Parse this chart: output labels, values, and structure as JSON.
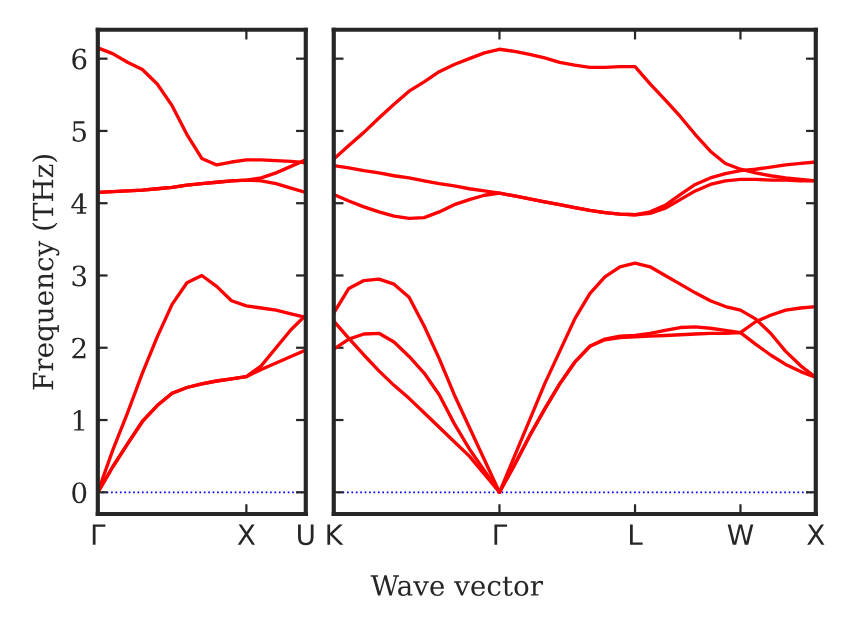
{
  "chart_data": [
    {
      "type": "line",
      "ylabel": "Frequency (THz)",
      "ylim": [
        -0.3,
        6.4
      ],
      "yticks": [
        0,
        1,
        2,
        3,
        4,
        5,
        6
      ],
      "categories": [
        "Γ",
        null,
        null,
        null,
        null,
        null,
        null,
        null,
        null,
        null,
        "X",
        null,
        null,
        null,
        "U"
      ],
      "line_style": "solid",
      "marker": "none",
      "grid": false,
      "legend": false,
      "ref_lines": [
        {
          "axis": "y",
          "value": 0,
          "label": null,
          "color": "#0000ff",
          "line_style": "dotted"
        }
      ],
      "series": [
        {
          "color": "#ff0000",
          "values": [
            6.15,
            6.07,
            5.95,
            5.85,
            5.65,
            5.35,
            4.95,
            4.62,
            4.53,
            4.57,
            4.6,
            4.6,
            4.59,
            4.58,
            4.56
          ]
        },
        {
          "color": "#ff0000",
          "values": [
            4.15,
            4.16,
            4.17,
            4.18,
            4.2,
            4.22,
            4.25,
            4.27,
            4.29,
            4.31,
            4.32,
            4.35,
            4.42,
            4.51,
            4.6
          ]
        },
        {
          "color": "#ff0000",
          "values": [
            4.15,
            4.16,
            4.17,
            4.18,
            4.2,
            4.22,
            4.25,
            4.27,
            4.29,
            4.31,
            4.32,
            4.31,
            4.27,
            4.21,
            4.15
          ]
        },
        {
          "color": "#ff0000",
          "values": [
            0,
            0.58,
            1.1,
            1.65,
            2.15,
            2.6,
            2.9,
            3.0,
            2.85,
            2.65,
            2.58,
            2.55,
            2.52,
            2.47,
            2.42
          ]
        },
        {
          "color": "#ff0000",
          "values": [
            0,
            0.35,
            0.67,
            0.98,
            1.2,
            1.37,
            1.45,
            1.5,
            1.54,
            1.57,
            1.6,
            1.75,
            2.0,
            2.25,
            2.45
          ]
        },
        {
          "color": "#ff0000",
          "values": [
            0,
            0.35,
            0.67,
            0.98,
            1.2,
            1.37,
            1.45,
            1.5,
            1.54,
            1.57,
            1.6,
            1.7,
            1.79,
            1.88,
            1.97
          ]
        }
      ]
    },
    {
      "type": "line",
      "xlabel": "Wave vector",
      "ylim": [
        -0.3,
        6.4
      ],
      "yticks": [
        0,
        1,
        2,
        3,
        4,
        5,
        6
      ],
      "tick_labels": "x",
      "categories": [
        "K",
        null,
        null,
        null,
        null,
        null,
        null,
        null,
        null,
        null,
        null,
        "Γ",
        null,
        null,
        null,
        null,
        null,
        null,
        null,
        null,
        "L",
        null,
        null,
        null,
        null,
        null,
        null,
        "W",
        null,
        null,
        null,
        null,
        "X"
      ],
      "line_style": "solid",
      "marker": "none",
      "grid": false,
      "legend": false,
      "ref_lines": [
        {
          "axis": "y",
          "value": 0,
          "label": null,
          "color": "#0000ff",
          "line_style": "dotted"
        }
      ],
      "series": [
        {
          "color": "#ff0000",
          "values": [
            4.61,
            4.8,
            4.98,
            5.18,
            5.37,
            5.55,
            5.68,
            5.82,
            5.92,
            6.0,
            6.08,
            6.13,
            6.1,
            6.06,
            6.01,
            5.95,
            5.91,
            5.88,
            5.88,
            5.89,
            5.89,
            5.65,
            5.43,
            5.2,
            4.95,
            4.72,
            4.55,
            4.47,
            4.42,
            4.38,
            4.35,
            4.33,
            4.31
          ]
        },
        {
          "color": "#ff0000",
          "values": [
            4.52,
            4.49,
            4.45,
            4.42,
            4.38,
            4.35,
            4.31,
            4.27,
            4.24,
            4.2,
            4.17,
            4.14,
            4.1,
            4.06,
            4.02,
            3.98,
            3.94,
            3.9,
            3.87,
            3.85,
            3.84,
            3.88,
            3.97,
            4.12,
            4.26,
            4.35,
            4.41,
            4.45,
            4.47,
            4.5,
            4.53,
            4.55,
            4.57
          ]
        },
        {
          "color": "#ff0000",
          "values": [
            4.12,
            4.03,
            3.95,
            3.88,
            3.82,
            3.79,
            3.8,
            3.88,
            3.98,
            4.05,
            4.11,
            4.14,
            4.1,
            4.06,
            4.02,
            3.98,
            3.94,
            3.9,
            3.87,
            3.85,
            3.84,
            3.86,
            3.93,
            4.05,
            4.17,
            4.26,
            4.31,
            4.33,
            4.33,
            4.32,
            4.32,
            4.31,
            4.31
          ]
        },
        {
          "color": "#ff0000",
          "values": [
            2.48,
            2.82,
            2.93,
            2.95,
            2.88,
            2.7,
            2.3,
            1.85,
            1.35,
            0.9,
            0.45,
            0,
            0.5,
            1.0,
            1.5,
            1.95,
            2.4,
            2.75,
            2.98,
            3.12,
            3.17,
            3.12,
            3.0,
            2.88,
            2.76,
            2.65,
            2.57,
            2.52,
            2.4,
            2.2,
            1.95,
            1.75,
            1.59
          ]
        },
        {
          "color": "#ff0000",
          "values": [
            1.98,
            2.12,
            2.19,
            2.2,
            2.08,
            1.88,
            1.65,
            1.35,
            0.95,
            0.6,
            0.3,
            0,
            0.38,
            0.78,
            1.15,
            1.5,
            1.8,
            2.02,
            2.12,
            2.16,
            2.17,
            2.2,
            2.24,
            2.28,
            2.29,
            2.27,
            2.24,
            2.21,
            2.36,
            2.45,
            2.52,
            2.55,
            2.57
          ]
        },
        {
          "color": "#ff0000",
          "values": [
            2.37,
            2.13,
            1.9,
            1.68,
            1.48,
            1.3,
            1.1,
            0.9,
            0.7,
            0.5,
            0.25,
            0,
            0.38,
            0.78,
            1.15,
            1.5,
            1.8,
            2.02,
            2.11,
            2.14,
            2.15,
            2.16,
            2.17,
            2.18,
            2.19,
            2.2,
            2.2,
            2.21,
            2.05,
            1.9,
            1.77,
            1.67,
            1.59
          ]
        }
      ]
    }
  ]
}
